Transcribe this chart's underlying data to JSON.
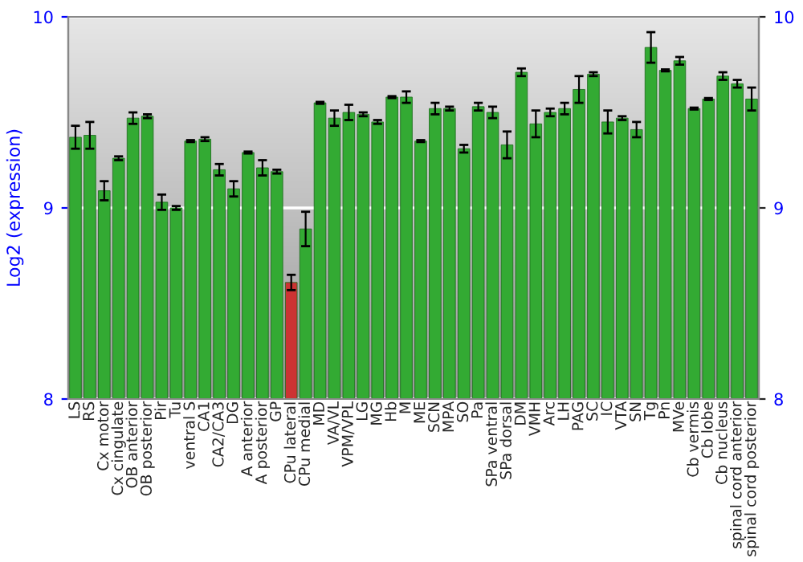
{
  "chart_data": {
    "type": "bar",
    "ylabel": "Log2 (expression)",
    "categories": [
      "LS",
      "RS",
      "Cx motor",
      "Cx cingulate",
      "OB anterior",
      "OB posterior",
      "Pir",
      "Tu",
      "ventral S",
      "CA1",
      "CA2/CA3",
      "DG",
      "A anterior",
      "A posterior",
      "GP",
      "CPu lateral",
      "CPu medial",
      "MD",
      "VA/VL",
      "VPM/VPL",
      "LG",
      "MG",
      "Hb",
      "M",
      "ME",
      "SCN",
      "MPA",
      "SO",
      "Pa",
      "SPa ventral",
      "SPa dorsal",
      "DM",
      "VMH",
      "Arc",
      "LH",
      "PAG",
      "SC",
      "IC",
      "VTA",
      "SN",
      "Tg",
      "Pn",
      "MVe",
      "Cb vermis",
      "Cb lobe",
      "Cb nucleus",
      "spinal cord anterior",
      "spinal cord posterior"
    ],
    "values": [
      9.37,
      9.38,
      9.09,
      9.26,
      9.47,
      9.48,
      9.03,
      9.0,
      9.35,
      9.36,
      9.2,
      9.1,
      9.29,
      9.21,
      9.19,
      8.61,
      8.89,
      9.55,
      9.47,
      9.5,
      9.49,
      9.45,
      9.58,
      9.58,
      9.35,
      9.52,
      9.52,
      9.31,
      9.53,
      9.5,
      9.33,
      9.71,
      9.44,
      9.5,
      9.52,
      9.62,
      9.7,
      9.45,
      9.47,
      9.41,
      9.84,
      9.72,
      9.77,
      9.52,
      9.57,
      9.69,
      9.65,
      9.57
    ],
    "errors": [
      0.06,
      0.07,
      0.05,
      0.01,
      0.03,
      0.01,
      0.04,
      0.01,
      0.005,
      0.01,
      0.03,
      0.04,
      0.005,
      0.04,
      0.01,
      0.04,
      0.09,
      0.005,
      0.04,
      0.04,
      0.01,
      0.01,
      0.005,
      0.03,
      0.005,
      0.03,
      0.01,
      0.02,
      0.02,
      0.03,
      0.07,
      0.02,
      0.07,
      0.02,
      0.03,
      0.07,
      0.01,
      0.06,
      0.01,
      0.04,
      0.08,
      0.005,
      0.02,
      0.005,
      0.005,
      0.02,
      0.02,
      0.06
    ],
    "colors": [
      "#33aa33",
      "#33aa33",
      "#33aa33",
      "#33aa33",
      "#33aa33",
      "#33aa33",
      "#33aa33",
      "#33aa33",
      "#33aa33",
      "#33aa33",
      "#33aa33",
      "#33aa33",
      "#33aa33",
      "#33aa33",
      "#33aa33",
      "#cc3333",
      "#33aa33",
      "#33aa33",
      "#33aa33",
      "#33aa33",
      "#33aa33",
      "#33aa33",
      "#33aa33",
      "#33aa33",
      "#33aa33",
      "#33aa33",
      "#33aa33",
      "#33aa33",
      "#33aa33",
      "#33aa33",
      "#33aa33",
      "#33aa33",
      "#33aa33",
      "#33aa33",
      "#33aa33",
      "#33aa33",
      "#33aa33",
      "#33aa33",
      "#33aa33",
      "#33aa33",
      "#33aa33",
      "#33aa33",
      "#33aa33",
      "#33aa33",
      "#33aa33",
      "#33aa33",
      "#33aa33",
      "#33aa33"
    ],
    "ylim": [
      8,
      10
    ],
    "yticks": [
      8,
      9,
      10
    ],
    "y2lim": [
      8,
      10
    ],
    "y2ticks": [
      8,
      9,
      10
    ],
    "grid": "y"
  }
}
